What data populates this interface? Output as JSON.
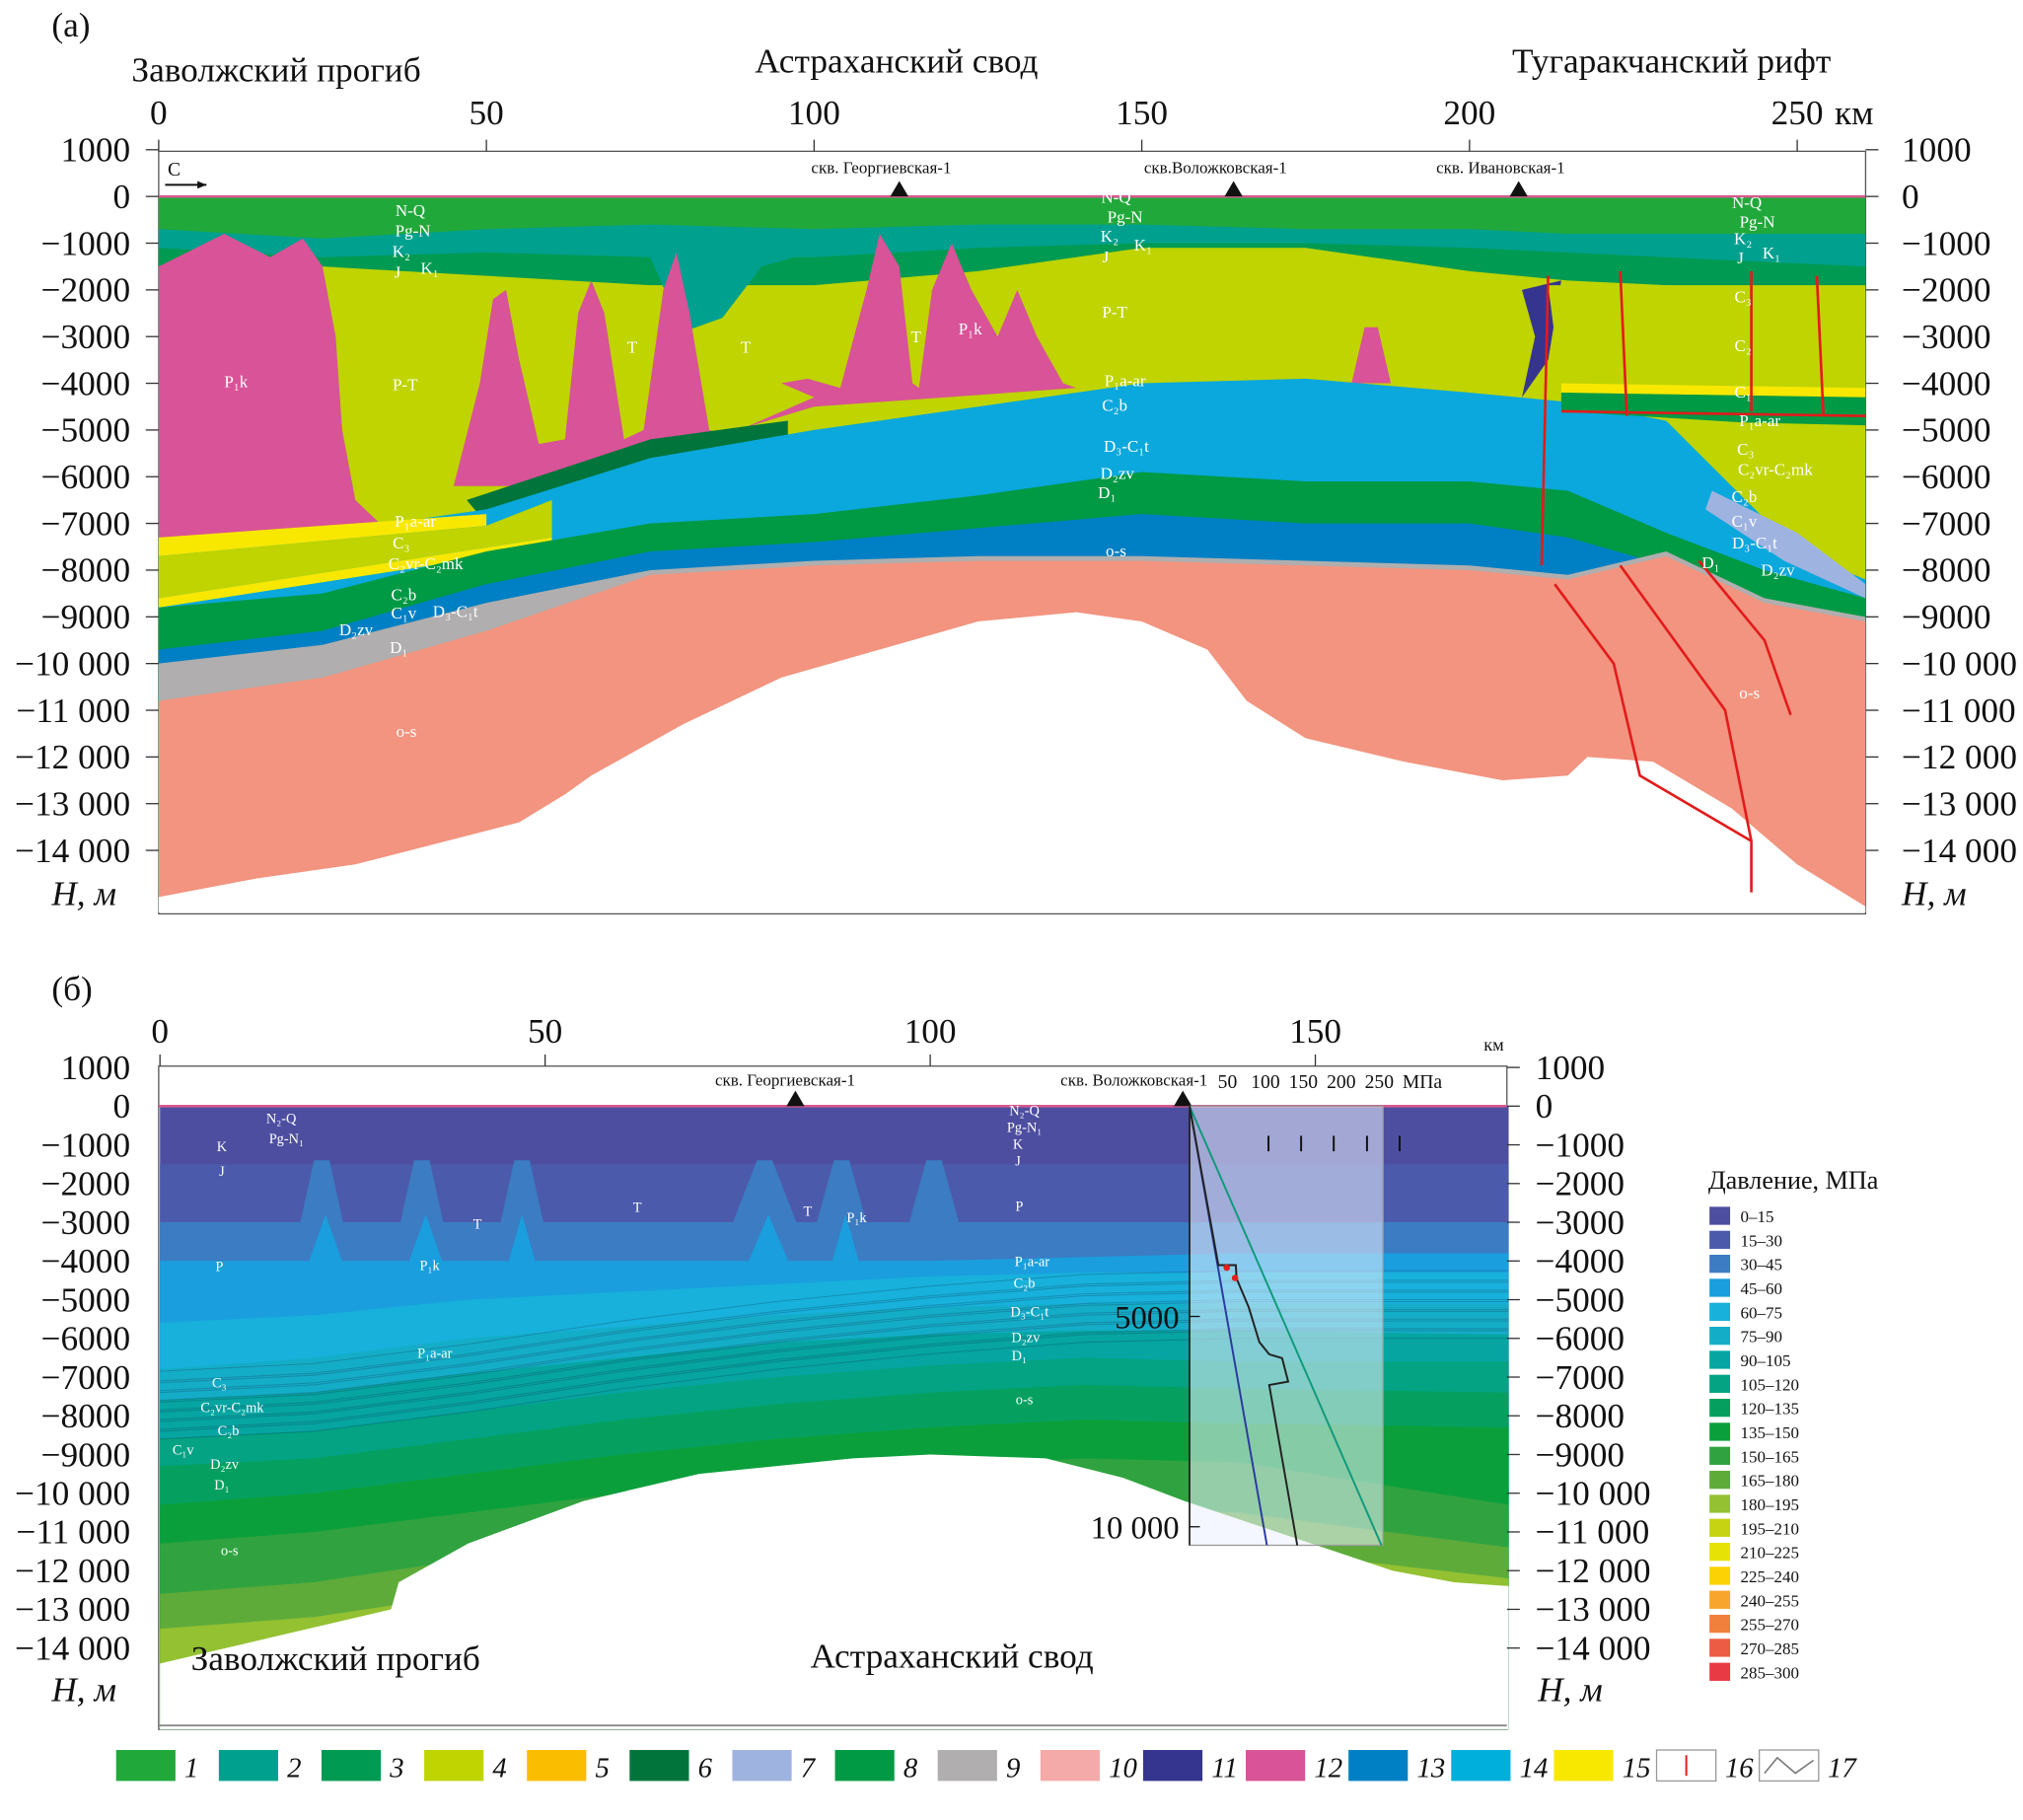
{
  "panel_a": {
    "label": "(a)",
    "regions": [
      "Заволжский прогиб",
      "Астраханский свод",
      "Тугаракчанский рифт"
    ],
    "x_ticks": [
      "0",
      "50",
      "100",
      "150",
      "200",
      "250"
    ],
    "x_unit": "км",
    "y_ticks": [
      "1000",
      "0",
      "−1000",
      "−2000",
      "−3000",
      "−4000",
      "−5000",
      "−6000",
      "−7000",
      "−8000",
      "−9000",
      "−10 000",
      "−11 000",
      "−12 000",
      "−13 000",
      "−14 000"
    ],
    "y_axis_label": "H, м",
    "direction_label": "С",
    "wells": [
      "скв. Георгиевская-1",
      "скв.Воложковская-1",
      "скв. Ивановская-1"
    ],
    "strata_labels": [
      "N-Q",
      "Pg-N",
      "K₂",
      "K₁",
      "J",
      "P₁k",
      "P-T",
      "T",
      "T",
      "T",
      "P₁k",
      "N-Q",
      "Pg-N",
      "K₂",
      "K₁",
      "J",
      "P-T",
      "P₁a-ar",
      "C₂b",
      "D₃-C₁t",
      "D₂zv",
      "D₁",
      "o-s",
      "P₁a-ar",
      "C₃",
      "C₂vr-C₂mk",
      "C₂b",
      "C₁v",
      "D₃-C₁t",
      "D₂zv",
      "D₁",
      "o-s",
      "N-Q",
      "Pg-N",
      "K₂",
      "K₁",
      "J",
      "C₃",
      "C₂",
      "C₁",
      "P₁a-ar",
      "C₃",
      "C₂vr-C₂mk",
      "C₂b",
      "C₁v",
      "D₃-C₁t",
      "D₁",
      "D₂zv",
      "o-s"
    ]
  },
  "panel_b": {
    "label": "(б)",
    "regions": [
      "Заволжский прогиб",
      "Астраханский свод"
    ],
    "x_ticks": [
      "0",
      "50",
      "100",
      "150"
    ],
    "x_unit": "км",
    "y_ticks": [
      "1000",
      "0",
      "−1000",
      "−2000",
      "−3000",
      "−4000",
      "−5000",
      "−6000",
      "−7000",
      "−8000",
      "−9000",
      "−10 000",
      "−11 000",
      "−12 000",
      "−13 000",
      "−14 000"
    ],
    "y_axis_label": "H, м",
    "wells": [
      "скв. Георгиевская-1",
      "скв. Воложковская-1"
    ],
    "strata_labels": [
      "N₂-Q",
      "Pg-N₁",
      "K",
      "J",
      "T",
      "T",
      "T",
      "P₁k",
      "P₁k",
      "P",
      "P",
      "N₂-Q",
      "Pg-N₁",
      "K",
      "J",
      "P₁a-ar",
      "C₂b",
      "D₃-C₁t",
      "D₂zv",
      "D₁",
      "o-s",
      "P₁a-ar",
      "C₃",
      "C₂vr-C₂mk",
      "C₂b",
      "C₁v",
      "D₂zv",
      "D₁",
      "o-s"
    ],
    "pressure_inset": {
      "x_ticks": [
        "50",
        "100",
        "150",
        "200",
        "250"
      ],
      "x_unit": "МПа",
      "y_ticks": [
        "5000",
        "10 000"
      ],
      "hydrostatic_mpa_vs_depth_m": [
        [
          0,
          0
        ],
        [
          102,
          10440
        ]
      ],
      "lithostatic_mpa_vs_depth_m": [
        [
          0,
          0
        ],
        [
          253,
          10440
        ]
      ],
      "measured_mpa_vs_depth_m": [
        [
          0,
          0
        ],
        [
          38,
          3780
        ],
        [
          61,
          3780
        ],
        [
          62,
          4100
        ],
        [
          78,
          4780
        ],
        [
          92,
          5610
        ],
        [
          105,
          5900
        ],
        [
          122,
          5990
        ],
        [
          130,
          6550
        ],
        [
          105,
          6630
        ],
        [
          142,
          10440
        ]
      ],
      "measured_points_mpa_vs_depth_m": [
        [
          49,
          3840
        ],
        [
          60,
          4085
        ]
      ],
      "colors": {
        "hydrostatic": "#2b3a9e",
        "lithostatic": "#0f9a7a",
        "measured": "#222222",
        "points": "#e0201c"
      }
    },
    "pressure_legend": {
      "title": "Давление, МПа",
      "items": [
        {
          "label": "0–15",
          "color": "#4d4e9f"
        },
        {
          "label": "15–30",
          "color": "#4b5aab"
        },
        {
          "label": "30–45",
          "color": "#3b7cc3"
        },
        {
          "label": "45–60",
          "color": "#1a9ede"
        },
        {
          "label": "60–75",
          "color": "#17b1dc"
        },
        {
          "label": "75–90",
          "color": "#14adc8"
        },
        {
          "label": "90–105",
          "color": "#06a5a2"
        },
        {
          "label": "105–120",
          "color": "#03a383"
        },
        {
          "label": "120–135",
          "color": "#05a060"
        },
        {
          "label": "135–150",
          "color": "#0b9f3b"
        },
        {
          "label": "150–165",
          "color": "#30a340"
        },
        {
          "label": "165–180",
          "color": "#5eab3a"
        },
        {
          "label": "180–195",
          "color": "#93c132"
        },
        {
          "label": "195–210",
          "color": "#c6d313"
        },
        {
          "label": "210–225",
          "color": "#e6e206"
        },
        {
          "label": "225–240",
          "color": "#fbd204"
        },
        {
          "label": "240–255",
          "color": "#f7a52c"
        },
        {
          "label": "255–270",
          "color": "#f0803b"
        },
        {
          "label": "270–285",
          "color": "#ec5c45"
        },
        {
          "label": "285–300",
          "color": "#e83a45"
        }
      ]
    }
  },
  "legend": {
    "items": [
      {
        "num": "1",
        "color": "#21a83a"
      },
      {
        "num": "2",
        "color": "#00a08f"
      },
      {
        "num": "3",
        "color": "#009a52"
      },
      {
        "num": "4",
        "color": "#bfd400"
      },
      {
        "num": "5",
        "color": "#fbbd00"
      },
      {
        "num": "6",
        "color": "#00743b"
      },
      {
        "num": "7",
        "color": "#9fb3e0"
      },
      {
        "num": "8",
        "color": "#009944"
      },
      {
        "num": "9",
        "color": "#b0aeae"
      },
      {
        "num": "10",
        "color": "#f4aaa8"
      },
      {
        "num": "11",
        "color": "#353590"
      },
      {
        "num": "12",
        "color": "#d85397"
      },
      {
        "num": "13",
        "color": "#0080c4"
      },
      {
        "num": "14",
        "color": "#00afdb"
      },
      {
        "num": "15",
        "color": "#f8e800"
      },
      {
        "num": "16",
        "color": "#ffffff"
      },
      {
        "num": "17",
        "color": "#ffffff"
      }
    ]
  }
}
